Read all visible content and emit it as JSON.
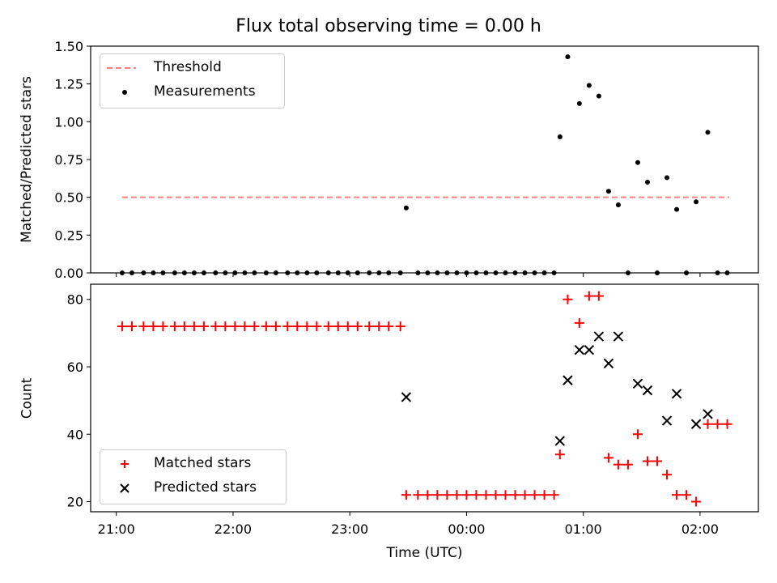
{
  "chart_data": [
    {
      "type": "scatter",
      "title": "Flux total observing time = 0.00 h",
      "xlabel": "",
      "ylabel": "Matched/Predicted stars",
      "ylim": [
        0,
        1.5
      ],
      "yticks": [
        "0.00",
        "0.25",
        "0.50",
        "0.75",
        "1.00",
        "1.25",
        "1.50"
      ],
      "xlim_hours": [
        20.78,
        26.5
      ],
      "legend": {
        "placement": "upper-left",
        "entries": [
          "Threshold",
          "Measurements"
        ]
      },
      "threshold": {
        "name": "Threshold",
        "value": 0.5,
        "x_start": "21:03",
        "x_end": "02:15",
        "color": "#ff7f7f",
        "style": "dashed"
      },
      "series": [
        {
          "name": "Measurements",
          "color": "#000000",
          "points": [
            [
              "21:03",
              0
            ],
            [
              "21:08",
              0
            ],
            [
              "21:14",
              0
            ],
            [
              "21:19",
              0
            ],
            [
              "21:24",
              0
            ],
            [
              "21:30",
              0
            ],
            [
              "21:35",
              0
            ],
            [
              "21:40",
              0
            ],
            [
              "21:45",
              0
            ],
            [
              "21:51",
              0
            ],
            [
              "21:56",
              0
            ],
            [
              "22:01",
              0
            ],
            [
              "22:06",
              0
            ],
            [
              "22:11",
              0
            ],
            [
              "22:17",
              0
            ],
            [
              "22:22",
              0
            ],
            [
              "22:28",
              0
            ],
            [
              "22:33",
              0
            ],
            [
              "22:38",
              0
            ],
            [
              "22:43",
              0
            ],
            [
              "22:49",
              0
            ],
            [
              "22:54",
              0
            ],
            [
              "22:59",
              0
            ],
            [
              "23:04",
              0
            ],
            [
              "23:10",
              0
            ],
            [
              "23:15",
              0
            ],
            [
              "23:20",
              0
            ],
            [
              "23:26",
              0
            ],
            [
              "23:29",
              0.43
            ],
            [
              "23:35",
              0
            ],
            [
              "23:40",
              0
            ],
            [
              "23:45",
              0
            ],
            [
              "23:50",
              0
            ],
            [
              "23:55",
              0
            ],
            [
              "00:00",
              0
            ],
            [
              "00:05",
              0
            ],
            [
              "00:10",
              0
            ],
            [
              "00:15",
              0
            ],
            [
              "00:20",
              0
            ],
            [
              "00:25",
              0
            ],
            [
              "00:30",
              0
            ],
            [
              "00:35",
              0
            ],
            [
              "00:40",
              0
            ],
            [
              "00:45",
              0
            ],
            [
              "00:48",
              0.9
            ],
            [
              "00:52",
              1.43
            ],
            [
              "00:58",
              1.12
            ],
            [
              "01:03",
              1.24
            ],
            [
              "01:08",
              1.17
            ],
            [
              "01:13",
              0.54
            ],
            [
              "01:18",
              0.45
            ],
            [
              "01:23",
              0
            ],
            [
              "01:28",
              0.73
            ],
            [
              "01:33",
              0.6
            ],
            [
              "01:38",
              0
            ],
            [
              "01:43",
              0.63
            ],
            [
              "01:48",
              0.42
            ],
            [
              "01:53",
              0
            ],
            [
              "01:58",
              0.47
            ],
            [
              "02:04",
              0.93
            ],
            [
              "02:09",
              0
            ],
            [
              "02:14",
              0
            ]
          ]
        }
      ]
    },
    {
      "type": "scatter",
      "title": "",
      "xlabel": "Time (UTC)",
      "ylabel": "Count",
      "ylim": [
        17,
        84.5
      ],
      "yticks": [
        "20",
        "40",
        "60",
        "80"
      ],
      "xticks": [
        "21:00",
        "22:00",
        "23:00",
        "00:00",
        "01:00",
        "02:00"
      ],
      "xlim_hours": [
        20.78,
        26.5
      ],
      "legend": {
        "placement": "lower-left",
        "entries": [
          "Matched stars",
          "Predicted stars"
        ]
      },
      "series": [
        {
          "name": "Matched stars",
          "color": "#ff0000",
          "marker": "plus",
          "points": [
            [
              "21:03",
              72
            ],
            [
              "21:08",
              72
            ],
            [
              "21:14",
              72
            ],
            [
              "21:19",
              72
            ],
            [
              "21:24",
              72
            ],
            [
              "21:30",
              72
            ],
            [
              "21:35",
              72
            ],
            [
              "21:40",
              72
            ],
            [
              "21:45",
              72
            ],
            [
              "21:51",
              72
            ],
            [
              "21:56",
              72
            ],
            [
              "22:01",
              72
            ],
            [
              "22:06",
              72
            ],
            [
              "22:11",
              72
            ],
            [
              "22:17",
              72
            ],
            [
              "22:22",
              72
            ],
            [
              "22:28",
              72
            ],
            [
              "22:33",
              72
            ],
            [
              "22:38",
              72
            ],
            [
              "22:43",
              72
            ],
            [
              "22:49",
              72
            ],
            [
              "22:54",
              72
            ],
            [
              "22:59",
              72
            ],
            [
              "23:04",
              72
            ],
            [
              "23:10",
              72
            ],
            [
              "23:15",
              72
            ],
            [
              "23:20",
              72
            ],
            [
              "23:26",
              72
            ],
            [
              "23:29",
              22
            ],
            [
              "23:35",
              22
            ],
            [
              "23:40",
              22
            ],
            [
              "23:45",
              22
            ],
            [
              "23:50",
              22
            ],
            [
              "23:55",
              22
            ],
            [
              "00:00",
              22
            ],
            [
              "00:05",
              22
            ],
            [
              "00:10",
              22
            ],
            [
              "00:15",
              22
            ],
            [
              "00:20",
              22
            ],
            [
              "00:25",
              22
            ],
            [
              "00:30",
              22
            ],
            [
              "00:35",
              22
            ],
            [
              "00:40",
              22
            ],
            [
              "00:45",
              22
            ],
            [
              "00:48",
              34
            ],
            [
              "00:52",
              80
            ],
            [
              "00:58",
              73
            ],
            [
              "01:03",
              81
            ],
            [
              "01:08",
              81
            ],
            [
              "01:13",
              33
            ],
            [
              "01:18",
              31
            ],
            [
              "01:23",
              31
            ],
            [
              "01:28",
              40
            ],
            [
              "01:33",
              32
            ],
            [
              "01:38",
              32
            ],
            [
              "01:43",
              28
            ],
            [
              "01:48",
              22
            ],
            [
              "01:53",
              22
            ],
            [
              "01:58",
              20
            ],
            [
              "02:04",
              43
            ],
            [
              "02:09",
              43
            ],
            [
              "02:14",
              43
            ]
          ]
        },
        {
          "name": "Predicted stars",
          "color": "#000000",
          "marker": "x",
          "points": [
            [
              "23:29",
              51
            ],
            [
              "00:48",
              38
            ],
            [
              "00:52",
              56
            ],
            [
              "00:58",
              65
            ],
            [
              "01:03",
              65
            ],
            [
              "01:08",
              69
            ],
            [
              "01:13",
              61
            ],
            [
              "01:18",
              69
            ],
            [
              "01:28",
              55
            ],
            [
              "01:33",
              53
            ],
            [
              "01:43",
              44
            ],
            [
              "01:48",
              52
            ],
            [
              "01:58",
              43
            ],
            [
              "02:04",
              46
            ]
          ]
        }
      ]
    }
  ],
  "colors": {
    "threshold": "#ff7f7f",
    "matched": "#ff0000",
    "predicted": "#000000",
    "measurement": "#000000"
  }
}
